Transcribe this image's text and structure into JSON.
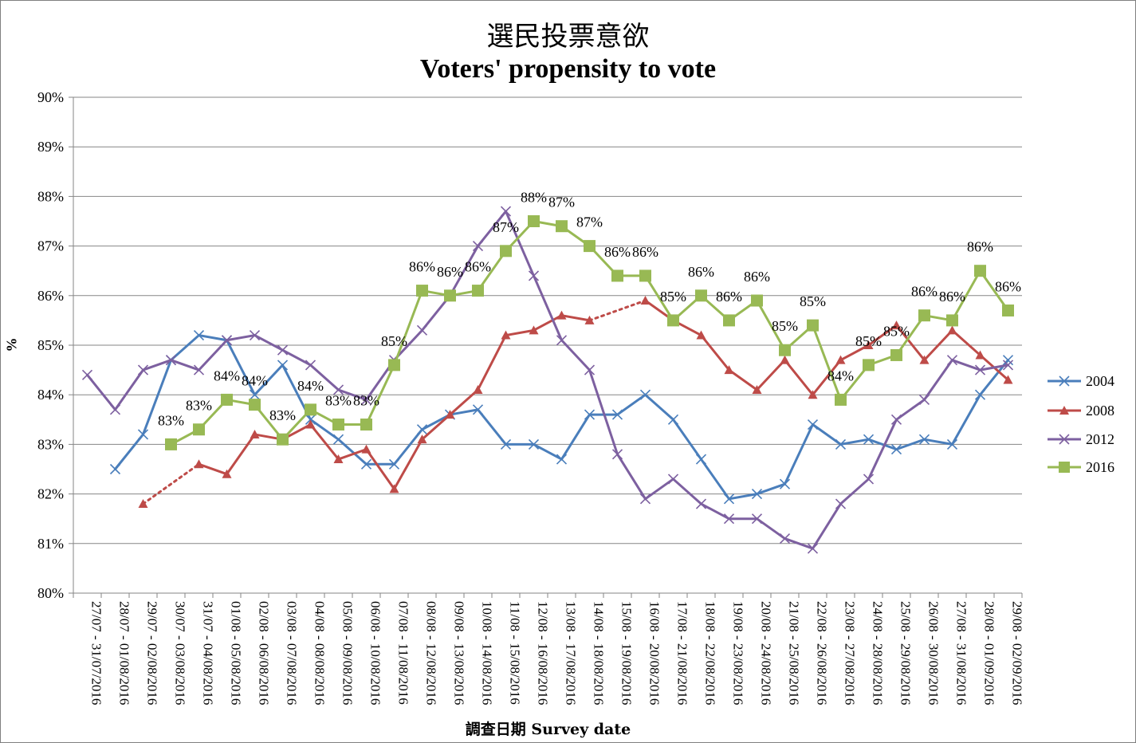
{
  "title_zh": "選民投票意欲",
  "title_en": "Voters' propensity to vote",
  "chart_data": {
    "type": "line",
    "ylabel": "%",
    "xlabel": "調查日期 Survey date",
    "ylim": [
      80,
      90
    ],
    "yticks": [
      "80%",
      "81%",
      "82%",
      "83%",
      "84%",
      "85%",
      "86%",
      "87%",
      "88%",
      "89%",
      "90%"
    ],
    "grid": true,
    "legend_position": "right",
    "categories": [
      "27/07 - 31/07/2016",
      "28/07 - 01/08/2016",
      "29/07 - 02/08/2016",
      "30/07 - 03/08/2016",
      "31/07 - 04/08/2016",
      "01/08 - 05/08/2016",
      "02/08 - 06/08/2016",
      "03/08 - 07/08/2016",
      "04/08 - 08/08/2016",
      "05/08 - 09/08/2016",
      "06/08 - 10/08/2016",
      "07/08 - 11/08/2016",
      "08/08 - 12/08/2016",
      "09/08 - 13/08/2016",
      "10/08 - 14/08/2016",
      "11/08 - 15/08/2016",
      "12/08 - 16/08/2016",
      "13/08 - 17/08/2016",
      "14/08 - 18/08/2016",
      "15/08 - 19/08/2016",
      "16/08 - 20/08/2016",
      "17/08 - 21/08/2016",
      "18/08 - 22/08/2016",
      "19/08 - 23/08/2016",
      "20/08 - 24/08/2016",
      "21/08 - 25/08/2016",
      "22/08 - 26/08/2016",
      "23/08 - 27/08/2016",
      "24/08 - 28/08/2016",
      "25/08 - 29/08/2016",
      "26/08 - 30/08/2016",
      "27/08 - 31/08/2016",
      "28/08 - 01/09/2016",
      "29/08 - 02/09/2016"
    ],
    "series": [
      {
        "name": "2004",
        "color": "#4a7ebb",
        "marker": "x",
        "values": [
          null,
          82.5,
          83.2,
          84.7,
          85.2,
          85.1,
          84.0,
          84.6,
          83.5,
          83.1,
          82.6,
          82.6,
          83.3,
          83.6,
          83.7,
          83.0,
          83.0,
          82.7,
          83.6,
          83.6,
          84.0,
          83.5,
          82.7,
          81.9,
          82.0,
          82.2,
          83.4,
          83.0,
          83.1,
          82.9,
          83.1,
          83.0,
          84.0,
          84.7
        ],
        "gaps": []
      },
      {
        "name": "2008",
        "color": "#be4b48",
        "marker": "triangle",
        "values": [
          null,
          null,
          81.8,
          null,
          82.6,
          82.4,
          83.2,
          83.1,
          83.4,
          82.7,
          82.9,
          82.1,
          83.1,
          83.6,
          84.1,
          85.2,
          85.3,
          85.6,
          85.5,
          null,
          85.9,
          85.5,
          85.2,
          84.5,
          84.1,
          84.7,
          84.0,
          84.7,
          85.0,
          85.4,
          84.7,
          85.3,
          84.8,
          84.3
        ],
        "gaps": [
          [
            2,
            4
          ],
          [
            18,
            20
          ]
        ]
      },
      {
        "name": "2012",
        "color": "#7d60a0",
        "marker": "x",
        "values": [
          84.4,
          83.7,
          84.5,
          84.7,
          84.5,
          85.1,
          85.2,
          84.9,
          84.6,
          84.1,
          83.9,
          84.7,
          85.3,
          86.0,
          87.0,
          87.7,
          86.4,
          85.1,
          84.5,
          82.8,
          81.9,
          82.3,
          81.8,
          81.5,
          81.5,
          81.1,
          80.9,
          81.8,
          82.3,
          83.5,
          83.9,
          84.7,
          84.5,
          84.6
        ],
        "gaps": []
      },
      {
        "name": "2016",
        "color": "#98b954",
        "marker": "square",
        "values": [
          null,
          null,
          null,
          83.0,
          83.3,
          83.9,
          83.8,
          83.1,
          83.7,
          83.4,
          83.4,
          84.6,
          86.1,
          86.0,
          86.1,
          86.9,
          87.5,
          87.4,
          87.0,
          86.4,
          86.4,
          85.5,
          86.0,
          85.5,
          85.9,
          84.9,
          85.4,
          83.9,
          84.6,
          84.8,
          85.6,
          85.5,
          86.5,
          85.7
        ],
        "data_labels": [
          null,
          null,
          null,
          "83%",
          "83%",
          "84%",
          "84%",
          "83%",
          "84%",
          "83%",
          "83%",
          "85%",
          "86%",
          "86%",
          "86%",
          "87%",
          "88%",
          "87%",
          "87%",
          "86%",
          "86%",
          "85%",
          "86%",
          "86%",
          "86%",
          "85%",
          "85%",
          "84%",
          "85%",
          "85%",
          "86%",
          "86%",
          "86%",
          "86%"
        ],
        "gaps": []
      }
    ]
  }
}
